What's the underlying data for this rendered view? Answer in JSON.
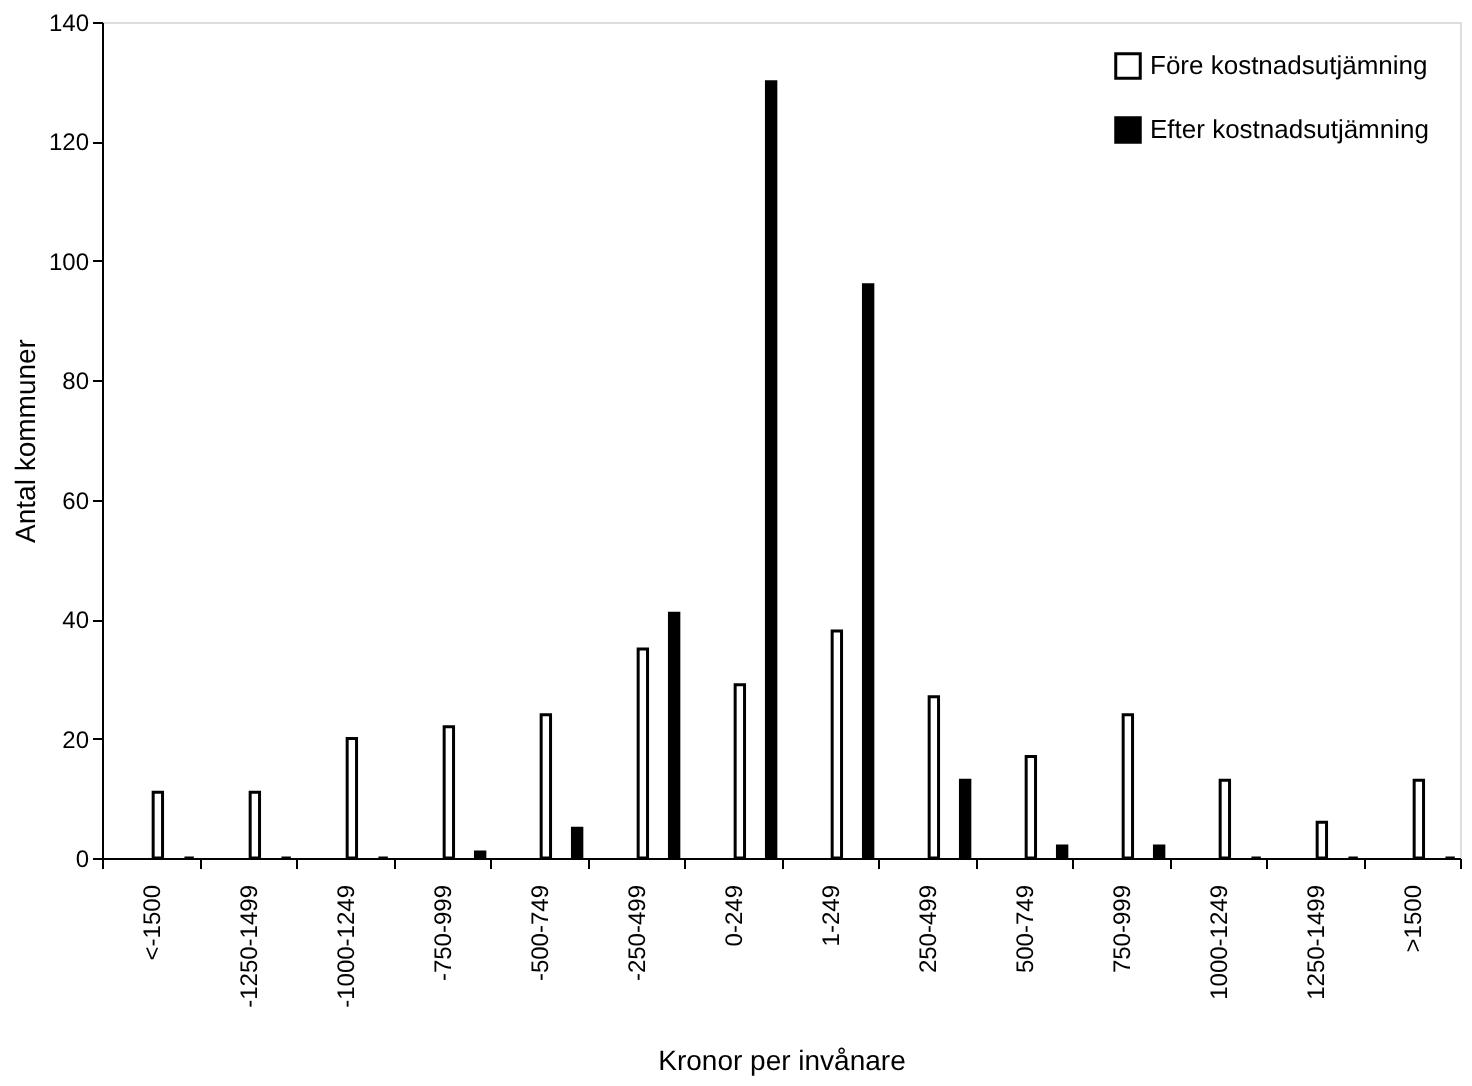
{
  "chart_data": {
    "type": "bar",
    "xlabel": "Kronor per invånare",
    "ylabel": "Antal kommuner",
    "categories": [
      "<-1500",
      "-1250-1499",
      "-1000-1249",
      "-750-999",
      "-500-749",
      "-250-499",
      "0-249",
      "1-249",
      "250-499",
      "500-749",
      "750-999",
      "1000-1249",
      "1250-1499",
      ">1500"
    ],
    "series": [
      {
        "name": "Före kostnadsutjämning",
        "color": "#ffffff",
        "values": [
          11,
          11,
          20,
          22,
          24,
          35,
          29,
          38,
          27,
          17,
          24,
          13,
          6,
          13
        ]
      },
      {
        "name": "Efter kostnadsutjämning",
        "color": "#000000",
        "values": [
          0,
          0,
          0,
          1,
          5,
          41,
          130,
          96,
          13,
          2,
          2,
          0,
          0,
          0
        ]
      }
    ],
    "ylim": [
      0,
      140
    ],
    "yticks": [
      0,
      20,
      40,
      60,
      80,
      100,
      120,
      140
    ],
    "grid": false,
    "legend": "top right"
  }
}
